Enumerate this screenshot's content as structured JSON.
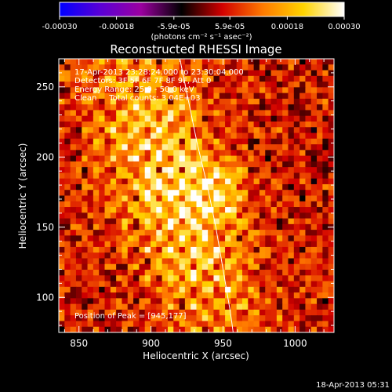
{
  "colorbar": {
    "ticks": [
      "-0.00030",
      "-0.00018",
      "-5.9e-05",
      "5.9e-05",
      "0.00018",
      "0.00030"
    ],
    "tick_values": [
      -0.0003,
      -0.00018,
      -5.9e-05,
      5.9e-05,
      0.00018,
      0.0003
    ],
    "range": [
      -0.0003,
      0.0003
    ],
    "units": "(photons cm⁻² s⁻¹ asec⁻²)",
    "stops": [
      "#0000ff",
      "#5a00d6",
      "#9b00a0",
      "#000000",
      "#d20000",
      "#ff7a00",
      "#ffd400",
      "#ffffff"
    ]
  },
  "plot": {
    "title": "Reconstructed RHESSI Image",
    "info_lines": [
      "17-Apr-2013 23:28:24.000 to 23:30:04.000",
      "Detectors: 3F 5F 6F 7F 8F 9F, Att 0",
      "Energy Range: 25.0 - 50.0 keV",
      "Clean     Total counts: 3.04E+03"
    ],
    "peak_label": "Position of Peak = [945,177]",
    "footer_timestamp": "18-Apr-2013 05:31"
  },
  "chart_data": {
    "type": "heatmap",
    "title": "Reconstructed RHESSI Image",
    "xlabel": "Heliocentric X (arcsec)",
    "ylabel": "Heliocentric Y (arcsec)",
    "xlim": [
      836,
      1027
    ],
    "ylim": [
      75,
      270
    ],
    "x_ticks": [
      850,
      900,
      950,
      1000
    ],
    "y_ticks": [
      100,
      150,
      200,
      250
    ],
    "peak": {
      "x": 945,
      "y": 177
    },
    "limb_curve": [
      [
        920,
        270
      ],
      [
        926,
        240
      ],
      [
        932,
        210
      ],
      [
        939,
        180
      ],
      [
        945,
        150
      ],
      [
        950,
        120
      ],
      [
        955,
        90
      ],
      [
        957,
        75
      ]
    ],
    "colormap_range": [
      -0.0003,
      0.0003
    ]
  }
}
